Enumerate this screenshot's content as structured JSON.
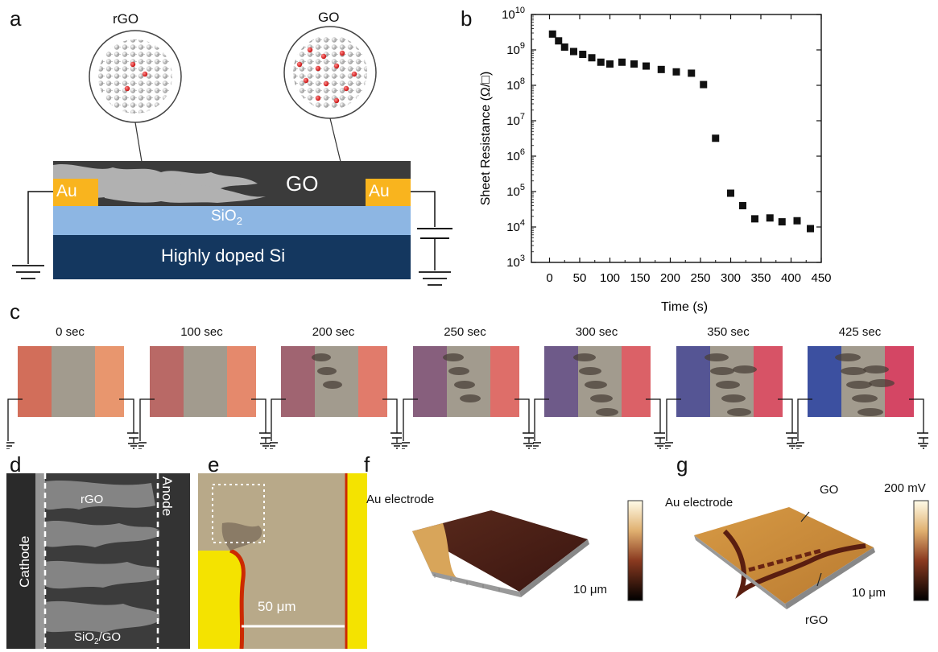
{
  "panels": {
    "a": {
      "letter": "a",
      "rgo_callout": "rGO",
      "go_callout": "GO",
      "go_region": "GO",
      "au_left": "Au",
      "au_right": "Au",
      "sio2_base": "SiO",
      "sio2_sub": "2",
      "si_layer": "Highly doped Si",
      "colors": {
        "au": "#f9b41e",
        "sio2": "#8db6e3",
        "si": "#14375f",
        "go": "#3b3b3b"
      }
    },
    "b": {
      "letter": "b"
    },
    "c": {
      "letter": "c",
      "frames": [
        "0 sec",
        "100 sec",
        "200 sec",
        "250 sec",
        "300 sec",
        "350 sec",
        "425 sec"
      ]
    },
    "d": {
      "letter": "d",
      "cathode": "Cathode",
      "anode": "Anode",
      "rgo": "rGO",
      "sio2go_base": "SiO",
      "sio2go_sub": "2",
      "sio2go_tail": "/GO"
    },
    "e": {
      "letter": "e",
      "scale": "50 μm"
    },
    "f": {
      "letter": "f",
      "au_electrode": "Au electrode",
      "scale": "10 μm"
    },
    "g": {
      "letter": "g",
      "au_electrode": "Au electrode",
      "go": "GO",
      "rgo": "rGO",
      "scale": "10 μm",
      "colorbar_label": "200 mV"
    }
  },
  "chart_data": {
    "type": "scatter",
    "xlabel": "Time (s)",
    "ylabel": "Sheet Resistance (Ω/□)",
    "xlim": [
      -30,
      450
    ],
    "ylim_log10": [
      3,
      10
    ],
    "yscale": "log",
    "x_ticks": [
      "0",
      "50",
      "100",
      "150",
      "200",
      "250",
      "300",
      "350",
      "400",
      "450"
    ],
    "y_ticks_base": [
      "10",
      "10",
      "10",
      "10",
      "10",
      "10",
      "10",
      "10"
    ],
    "y_ticks_exp": [
      "3",
      "4",
      "5",
      "6",
      "7",
      "8",
      "9",
      "10"
    ],
    "points": [
      [
        5,
        2800000000.0
      ],
      [
        15,
        1800000000.0
      ],
      [
        25,
        1200000000.0
      ],
      [
        40,
        900000000.0
      ],
      [
        55,
        750000000.0
      ],
      [
        70,
        600000000.0
      ],
      [
        85,
        450000000.0
      ],
      [
        100,
        400000000.0
      ],
      [
        120,
        450000000.0
      ],
      [
        140,
        400000000.0
      ],
      [
        160,
        350000000.0
      ],
      [
        185,
        280000000.0
      ],
      [
        210,
        240000000.0
      ],
      [
        235,
        220000000.0
      ],
      [
        255,
        105000000.0
      ],
      [
        275,
        3200000.0
      ],
      [
        300,
        90000.0
      ],
      [
        320,
        40000.0
      ],
      [
        340,
        17000.0
      ],
      [
        365,
        18000.0
      ],
      [
        385,
        14000.0
      ],
      [
        410,
        15000.0
      ],
      [
        432,
        9000.0
      ]
    ],
    "marker": "square",
    "grid": false
  }
}
